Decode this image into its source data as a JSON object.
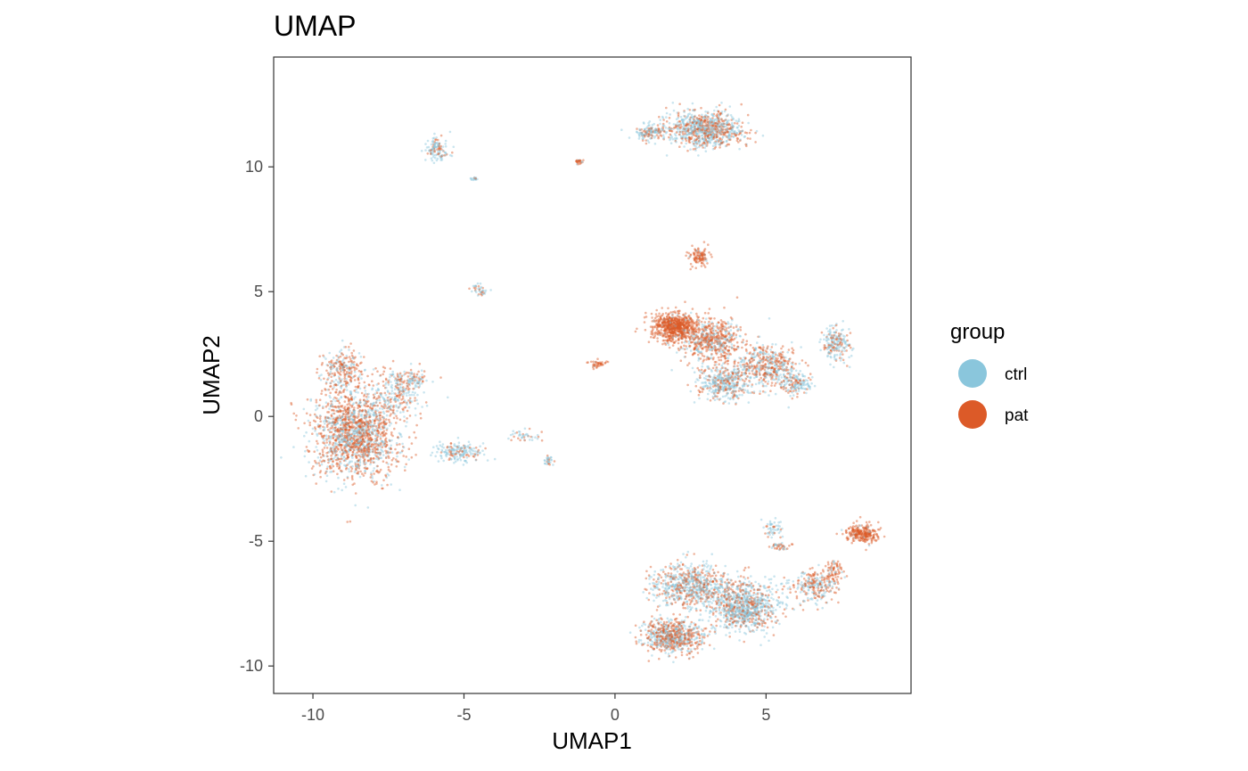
{
  "chart_data": {
    "type": "scatter",
    "title": "UMAP",
    "xlabel": "UMAP1",
    "ylabel": "UMAP2",
    "xlim": [
      -11.3,
      9.8
    ],
    "ylim": [
      -11.1,
      14.4
    ],
    "xticks": [
      -10,
      -5,
      0,
      5
    ],
    "yticks": [
      -10,
      -5,
      0,
      5,
      10
    ],
    "xtick_labels": [
      "-10",
      "-5",
      "0",
      "5"
    ],
    "ytick_labels": [
      "-10",
      "-5",
      "0",
      "5",
      "10"
    ],
    "grid": false,
    "legend": {
      "title": "group",
      "position": "right",
      "entries": [
        {
          "name": "ctrl",
          "color": "#8ac6dc"
        },
        {
          "name": "pat",
          "color": "#dc5a28"
        }
      ]
    },
    "series": [
      {
        "name": "ctrl",
        "color": "#8ac6dc"
      },
      {
        "name": "pat",
        "color": "#dc5a28"
      }
    ],
    "clusters": [
      {
        "center": [
          -8.6,
          -0.7
        ],
        "spread": [
          1.25,
          1.6
        ],
        "count": 1700,
        "pat_share": 0.6
      },
      {
        "center": [
          -9.0,
          1.9
        ],
        "spread": [
          0.6,
          0.8
        ],
        "count": 250,
        "pat_share": 0.65
      },
      {
        "center": [
          -7.2,
          1.0
        ],
        "spread": [
          0.8,
          0.8
        ],
        "count": 250,
        "pat_share": 0.45
      },
      {
        "center": [
          -6.6,
          1.5
        ],
        "spread": [
          0.3,
          0.3
        ],
        "count": 60,
        "pat_share": 0.5
      },
      {
        "center": [
          -5.2,
          -1.4
        ],
        "spread": [
          0.7,
          0.35
        ],
        "count": 180,
        "pat_share": 0.25
      },
      {
        "center": [
          -5.9,
          10.7
        ],
        "spread": [
          0.35,
          0.45
        ],
        "count": 120,
        "pat_share": 0.3
      },
      {
        "center": [
          -4.7,
          9.5
        ],
        "spread": [
          0.15,
          0.1
        ],
        "count": 15,
        "pat_share": 0.3
      },
      {
        "center": [
          -1.2,
          10.2
        ],
        "spread": [
          0.15,
          0.08
        ],
        "count": 25,
        "pat_share": 0.9
      },
      {
        "center": [
          3.0,
          11.5
        ],
        "spread": [
          1.1,
          0.65
        ],
        "count": 900,
        "pat_share": 0.45
      },
      {
        "center": [
          1.2,
          11.4
        ],
        "spread": [
          0.5,
          0.3
        ],
        "count": 150,
        "pat_share": 0.4
      },
      {
        "center": [
          -4.5,
          5.1
        ],
        "spread": [
          0.25,
          0.2
        ],
        "count": 40,
        "pat_share": 0.3
      },
      {
        "center": [
          -0.6,
          2.1
        ],
        "spread": [
          0.25,
          0.12
        ],
        "count": 40,
        "pat_share": 0.95
      },
      {
        "center": [
          -3.0,
          -0.8
        ],
        "spread": [
          0.5,
          0.2
        ],
        "count": 40,
        "pat_share": 0.4
      },
      {
        "center": [
          -2.2,
          -1.8
        ],
        "spread": [
          0.12,
          0.2
        ],
        "count": 30,
        "pat_share": 0.3
      },
      {
        "center": [
          2.0,
          3.6
        ],
        "spread": [
          0.65,
          0.5
        ],
        "count": 700,
        "pat_share": 0.95
      },
      {
        "center": [
          3.2,
          3.0
        ],
        "spread": [
          0.9,
          0.8
        ],
        "count": 600,
        "pat_share": 0.7
      },
      {
        "center": [
          3.6,
          1.3
        ],
        "spread": [
          0.8,
          0.6
        ],
        "count": 400,
        "pat_share": 0.35
      },
      {
        "center": [
          5.0,
          2.0
        ],
        "spread": [
          0.9,
          0.7
        ],
        "count": 500,
        "pat_share": 0.5
      },
      {
        "center": [
          7.3,
          2.9
        ],
        "spread": [
          0.4,
          0.6
        ],
        "count": 200,
        "pat_share": 0.3
      },
      {
        "center": [
          6.0,
          1.3
        ],
        "spread": [
          0.5,
          0.4
        ],
        "count": 150,
        "pat_share": 0.3
      },
      {
        "center": [
          2.8,
          6.4
        ],
        "spread": [
          0.3,
          0.35
        ],
        "count": 110,
        "pat_share": 0.95
      },
      {
        "center": [
          2.5,
          -6.8
        ],
        "spread": [
          1.2,
          0.8
        ],
        "count": 750,
        "pat_share": 0.4
      },
      {
        "center": [
          1.9,
          -8.8
        ],
        "spread": [
          0.9,
          0.6
        ],
        "count": 700,
        "pat_share": 0.55
      },
      {
        "center": [
          4.3,
          -7.6
        ],
        "spread": [
          1.0,
          0.9
        ],
        "count": 900,
        "pat_share": 0.35
      },
      {
        "center": [
          6.6,
          -6.8
        ],
        "spread": [
          0.7,
          0.6
        ],
        "count": 250,
        "pat_share": 0.5
      },
      {
        "center": [
          7.2,
          -6.2
        ],
        "spread": [
          0.3,
          0.4
        ],
        "count": 80,
        "pat_share": 0.8
      },
      {
        "center": [
          8.2,
          -4.7
        ],
        "spread": [
          0.5,
          0.3
        ],
        "count": 260,
        "pat_share": 0.95
      },
      {
        "center": [
          5.2,
          -4.5
        ],
        "spread": [
          0.3,
          0.35
        ],
        "count": 50,
        "pat_share": 0.2
      },
      {
        "center": [
          5.5,
          -5.2
        ],
        "spread": [
          0.4,
          0.12
        ],
        "count": 40,
        "pat_share": 0.7
      }
    ]
  }
}
